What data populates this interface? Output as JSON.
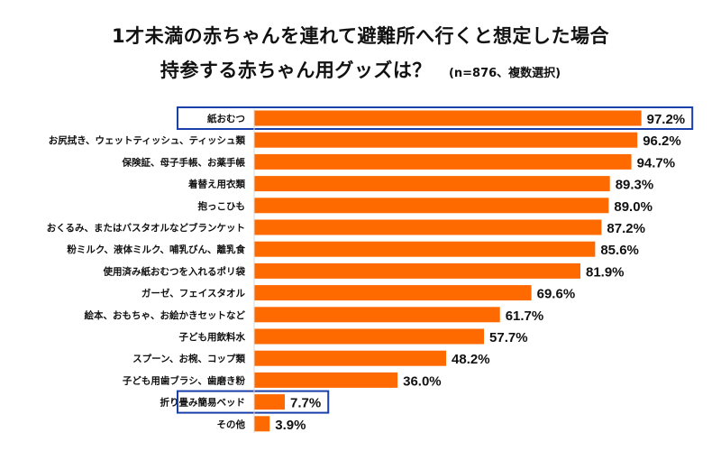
{
  "chart_data": {
    "type": "bar",
    "orientation": "horizontal",
    "title_line1": "1才未満の赤ちゃんを連れて避難所へ行くと想定した場合",
    "title_line2": "持参する赤ちゃん用グッズは？",
    "note": "(n=876、複数選択)",
    "unit": "%",
    "bar_color": "#ff6a00",
    "highlight_color": "#1a3fa8",
    "xlim": [
      0,
      100
    ],
    "categories": [
      "紙おむつ",
      "お尻拭き、ウェットティッシュ、ティッシュ類",
      "保険証、母子手帳、お薬手帳",
      "着替え用衣類",
      "抱っこひも",
      "おくるみ、またはバスタオルなどブランケット",
      "粉ミルク、液体ミルク、哺乳びん、離乳食",
      "使用済み紙おむつを入れるポリ袋",
      "ガーゼ、フェイスタオル",
      "絵本、おもちゃ、お絵かきセットなど",
      "子ども用飲料水",
      "スプーン、お椀、コップ類",
      "子ども用歯ブラシ、歯磨き粉",
      "折り畳み簡易ベッド",
      "その他"
    ],
    "values": [
      97.2,
      96.2,
      94.7,
      89.3,
      89.0,
      87.2,
      85.6,
      81.9,
      69.6,
      61.7,
      57.7,
      48.2,
      36.0,
      7.7,
      3.9
    ],
    "value_labels": [
      "97.2%",
      "96.2%",
      "94.7%",
      "89.3%",
      "89.0%",
      "87.2%",
      "85.6%",
      "81.9%",
      "69.6%",
      "61.7%",
      "57.7%",
      "48.2%",
      "36.0%",
      "7.7%",
      "3.9%"
    ],
    "highlighted_indices": [
      0,
      13
    ]
  }
}
